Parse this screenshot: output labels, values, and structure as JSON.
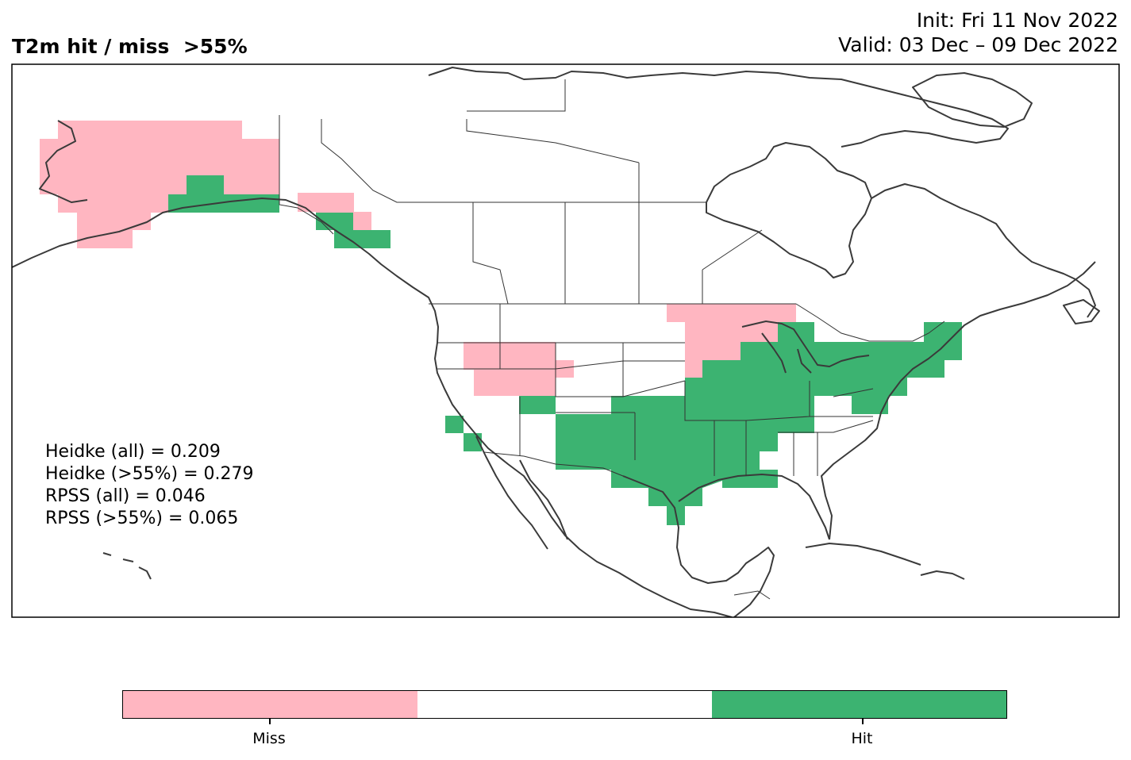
{
  "title": {
    "left": "T2m hit / miss  >55%",
    "init": "Init: Fri 11 Nov 2022",
    "valid": "Valid: 03 Dec – 09 Dec 2022"
  },
  "stats": [
    "Heidke (all) = 0.209",
    "Heidke (>55%) = 0.279",
    "RPSS (all) = 0.046",
    "RPSS (>55%) = 0.065"
  ],
  "colors": {
    "miss": "#ffb6c1",
    "neutral": "#ffffff",
    "hit": "#3cb371"
  },
  "colorbar": {
    "labels": [
      "Miss",
      "Hit"
    ]
  },
  "legend_categories": [
    "Miss",
    "Hit"
  ]
}
